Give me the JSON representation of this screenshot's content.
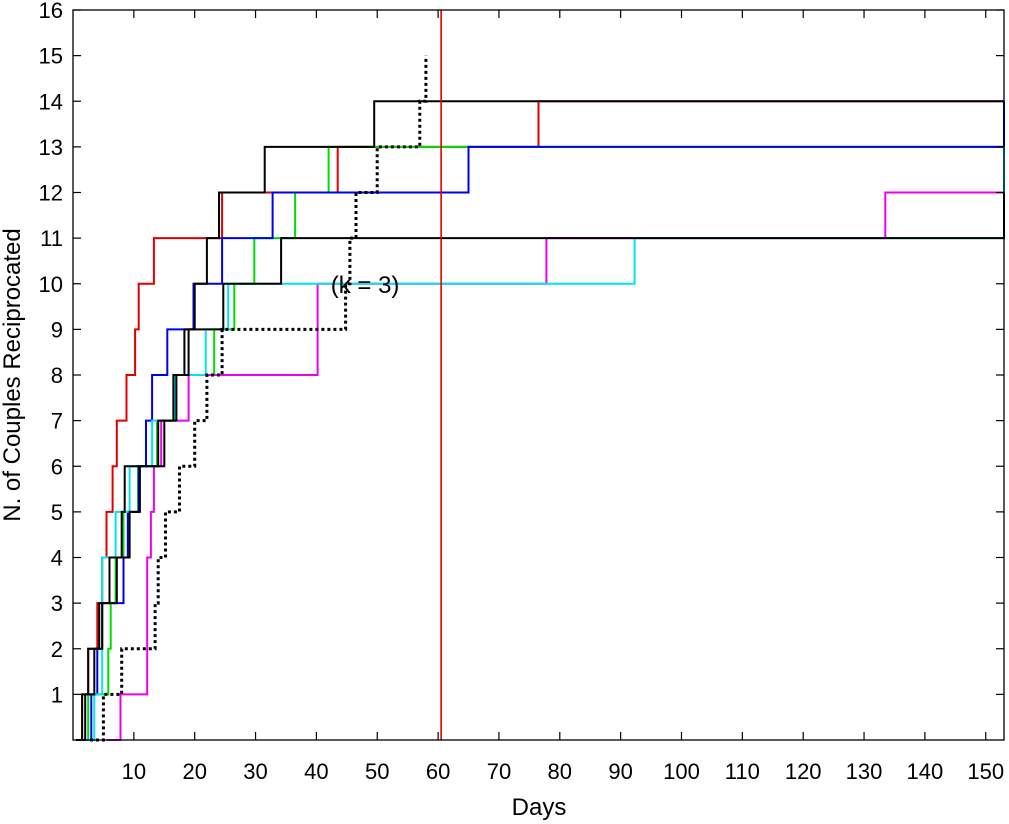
{
  "chart_data": {
    "type": "line",
    "title": "",
    "xlabel": "Days",
    "ylabel": "N. of Couples Reciprocated",
    "xlim": [
      0,
      153
    ],
    "ylim": [
      0,
      16
    ],
    "xticks": [
      10,
      20,
      30,
      40,
      50,
      60,
      70,
      80,
      90,
      100,
      110,
      120,
      130,
      140,
      150
    ],
    "yticks": [
      1,
      2,
      3,
      4,
      5,
      6,
      7,
      8,
      9,
      10,
      11,
      12,
      13,
      14,
      15,
      16
    ],
    "grid": false,
    "legend": "none",
    "annotations": [
      {
        "text": "(k = 3)",
        "x": 48,
        "y": 9.8
      }
    ],
    "reference_lines": [
      {
        "orientation": "vertical",
        "x": 60.5,
        "color": "#e00000"
      }
    ],
    "series": [
      {
        "color": "#e00000",
        "style": "solid",
        "x": [
          0.5,
          1.5,
          2.5,
          4.0,
          4.8,
          5.5,
          6.5,
          7.2,
          8.8,
          10.2,
          10.8,
          13.3,
          24.5,
          43.5,
          76.5,
          153
        ],
        "y": [
          0,
          1,
          2,
          3,
          4,
          5,
          6,
          7,
          8,
          9,
          10,
          11,
          12,
          13,
          14,
          14
        ]
      },
      {
        "color": "#00dd00",
        "style": "solid",
        "x": [
          0.8,
          2.5,
          5.8,
          6.2,
          7.0,
          8.3,
          10.7,
          13.8,
          16.8,
          23.2,
          26.5,
          29.8,
          36.5,
          42.0,
          153
        ],
        "y": [
          0,
          1,
          2,
          3,
          4,
          5,
          6,
          7,
          8,
          9,
          10,
          11,
          12,
          13,
          13
        ]
      },
      {
        "color": "#0000ee",
        "style": "solid",
        "x": [
          1.8,
          3.0,
          4.0,
          4.8,
          8.3,
          9.0,
          10.8,
          12.0,
          13.0,
          15.5,
          19.8,
          24.5,
          32.8,
          65.0,
          153
        ],
        "y": [
          0,
          1,
          2,
          3,
          4,
          5,
          6,
          7,
          8,
          9,
          10,
          11,
          12,
          13,
          14
        ]
      },
      {
        "color": "#ee00ee",
        "style": "solid",
        "x": [
          5.5,
          7.8,
          12.2,
          12.8,
          13.3,
          14.5,
          19.0,
          40.2,
          77.8,
          133.5,
          153
        ],
        "y": [
          0,
          1,
          4,
          5,
          6,
          7,
          8,
          10,
          11,
          12,
          13
        ]
      },
      {
        "color": "#00e5ee",
        "style": "solid",
        "x": [
          0.8,
          3.5,
          4.8,
          7.0,
          9.3,
          13.0,
          16.8,
          21.8,
          25.5,
          92.3,
          153
        ],
        "y": [
          0,
          1,
          4,
          5,
          6,
          7,
          8,
          9,
          10,
          11,
          13
        ]
      },
      {
        "color": "#000000",
        "style": "solid",
        "x": [
          0.8,
          2.0,
          3.5,
          4.3,
          6.0,
          8.0,
          8.5,
          15.0,
          17.0,
          19.0,
          20.0,
          22.0,
          24.0,
          31.5,
          49.5,
          51.0,
          153
        ],
        "y": [
          0,
          1,
          2,
          3,
          4,
          5,
          6,
          7,
          8,
          9,
          10,
          11,
          12,
          13,
          14,
          14,
          14
        ]
      },
      {
        "color": "#000000",
        "style": "solid",
        "x": [
          0.5,
          1.5,
          2.5,
          4.8,
          7.2,
          9.3,
          11.0,
          14.0,
          16.5,
          18.3,
          24.7,
          34.2,
          153
        ],
        "y": [
          0,
          1,
          2,
          3,
          4,
          5,
          6,
          7,
          8,
          9,
          10,
          11,
          12
        ]
      },
      {
        "color": "#000000",
        "style": "dotted",
        "x": [
          2.8,
          5.0,
          8.0,
          13.5,
          14.0,
          15.2,
          17.5,
          20.0,
          22.0,
          24.5,
          44.8,
          45.5,
          46.5,
          50.0,
          57.0,
          58.0
        ],
        "y": [
          0,
          1,
          2,
          3,
          4,
          5,
          6,
          7,
          8,
          9,
          10,
          11,
          12,
          13,
          14,
          15
        ]
      }
    ]
  }
}
